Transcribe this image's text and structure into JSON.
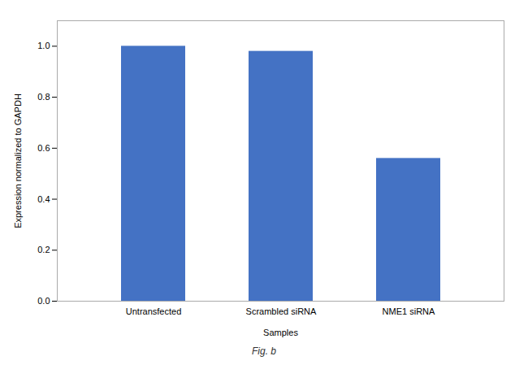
{
  "chart_data": {
    "type": "bar",
    "categories": [
      "Untransfected",
      "Scrambled siRNA",
      "NME1 siRNA"
    ],
    "values": [
      1.0,
      0.98,
      0.56
    ],
    "color": "#4472C4",
    "xlabel": "Samples",
    "ylabel": "Expression normalized to GAPDH",
    "ylim": [
      0,
      1.1
    ],
    "yticks": [
      {
        "value": 0,
        "label": "0.0"
      },
      0.2,
      0.4,
      0.6,
      0.8,
      {
        "value": 1.0,
        "label": "1.0"
      }
    ],
    "annotations": [
      "Fig. b"
    ]
  }
}
